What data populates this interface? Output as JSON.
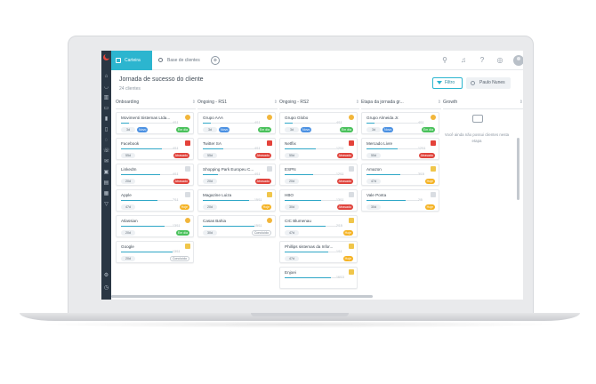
{
  "app": {
    "tabs": [
      {
        "label": "Carteira",
        "active": true
      },
      {
        "label": "Base de clientes",
        "active": false
      }
    ],
    "add_tab": "+"
  },
  "header": {
    "title": "Jornada de sucesso do cliente",
    "subtitle": "24 clientes",
    "filter_label": "Filtro",
    "user_label": "Paulo Nunes"
  },
  "colors": {
    "accent": "#2cb5cf",
    "sidebar": "#2a3744",
    "on_time": "#49c15b",
    "late": "#e0443d",
    "today": "#f5b324"
  },
  "columns": [
    {
      "title": "Onboarding",
      "cards": [
        {
          "title": "Movimenti Sistemas Ltda...",
          "date": "4/11",
          "progress": 0.15,
          "days": "3d",
          "tag": "Novo",
          "status": "Em dia",
          "status_type": "emdia",
          "mood": "face"
        },
        {
          "title": "Facebook",
          "date": "4/11",
          "progress": 0.8,
          "days": "55d",
          "tag": "",
          "status": "Atrasado",
          "status_type": "atrasado",
          "mood": "angry"
        },
        {
          "title": "LinkedIn",
          "date": "4/11",
          "progress": 0.75,
          "days": "20d",
          "tag": "",
          "status": "Atrasado",
          "status_type": "atrasado",
          "mood": "sad"
        },
        {
          "title": "Apple",
          "date": "7/11",
          "progress": 0.7,
          "days": "47d",
          "tag": "",
          "status": "Hoje",
          "status_type": "hoje",
          "mood": "sad"
        },
        {
          "title": "Atlassian",
          "date": "13/11",
          "progress": 0.85,
          "days": "20d",
          "tag": "",
          "status": "Em dia",
          "status_type": "emdia",
          "mood": "face"
        },
        {
          "title": "Google",
          "date": "13/11",
          "progress": 1.0,
          "days": "20d",
          "tag": "",
          "status": "Concluído",
          "status_type": "concluido",
          "mood": "mid"
        }
      ]
    },
    {
      "title": "Ongoing - RS1",
      "cards": [
        {
          "title": "Grupo AAA",
          "date": "4/11",
          "progress": 0.15,
          "days": "3d",
          "tag": "Novo",
          "status": "Em dia",
          "status_type": "emdia",
          "mood": "face"
        },
        {
          "title": "Twitter SA",
          "date": "4/11",
          "progress": 0.4,
          "days": "55d",
          "tag": "",
          "status": "Atrasado",
          "status_type": "atrasado",
          "mood": "angry"
        },
        {
          "title": "Shopping Park Europeu C...",
          "date": "4/11",
          "progress": 0.3,
          "days": "20d",
          "tag": "",
          "status": "Atrasado",
          "status_type": "atrasado",
          "mood": "sad"
        },
        {
          "title": "Magazine Luiza",
          "date": "15/11",
          "progress": 0.9,
          "days": "20d",
          "tag": "",
          "status": "Hoje",
          "status_type": "hoje",
          "mood": "mid"
        },
        {
          "title": "Casas Bahia",
          "date": "15/11",
          "progress": 1.0,
          "days": "30d",
          "tag": "",
          "status": "Concluído",
          "status_type": "concluido",
          "mood": "face"
        }
      ]
    },
    {
      "title": "Ongoing - RS2",
      "cards": [
        {
          "title": "Grupo Globo",
          "date": "4/11",
          "progress": 0.15,
          "days": "3d",
          "tag": "Novo",
          "status": "Em dia",
          "status_type": "emdia",
          "mood": "face"
        },
        {
          "title": "Netflix",
          "date": "12/11",
          "progress": 0.6,
          "days": "55d",
          "tag": "",
          "status": "Atrasado",
          "status_type": "atrasado",
          "mood": "angry"
        },
        {
          "title": "ESPN",
          "date": "12/11",
          "progress": 0.55,
          "days": "20d",
          "tag": "",
          "status": "Atrasado",
          "status_type": "atrasado",
          "mood": "sad"
        },
        {
          "title": "HBO",
          "date": "13/11",
          "progress": 0.7,
          "days": "30d",
          "tag": "",
          "status": "Atrasado",
          "status_type": "atrasado",
          "mood": "sad"
        },
        {
          "title": "CIC Blumenau",
          "date": "2/15",
          "progress": 0.8,
          "days": "47d",
          "tag": "",
          "status": "Hoje",
          "status_type": "hoje",
          "mood": "mid"
        },
        {
          "title": "Phillips sistemas da Infor...",
          "date": "1/11",
          "progress": 0.85,
          "days": "47d",
          "tag": "",
          "status": "Hoje",
          "status_type": "hoje",
          "mood": "mid"
        },
        {
          "title": "Enjoei",
          "date": "16/13",
          "progress": 0.9,
          "days": "",
          "tag": "",
          "status": "",
          "status_type": "",
          "mood": "mid"
        }
      ]
    },
    {
      "title": "Etapa da jornada gr...",
      "cards": [
        {
          "title": "Grupo Almeida Jr.",
          "date": "4/11",
          "progress": 0.15,
          "days": "3d",
          "tag": "Novo",
          "status": "Em dia",
          "status_type": "emdia",
          "mood": "face"
        },
        {
          "title": "Mercado Livre",
          "date": "12/11",
          "progress": 0.6,
          "days": "55d",
          "tag": "",
          "status": "Atrasado",
          "status_type": "atrasado",
          "mood": "angry"
        },
        {
          "title": "Amazon",
          "date": "3/15",
          "progress": 0.65,
          "days": "47d",
          "tag": "",
          "status": "Hoje",
          "status_type": "hoje",
          "mood": "mid"
        },
        {
          "title": "Vale Ponta",
          "date": "2/5",
          "progress": 0.75,
          "days": "30d",
          "tag": "",
          "status": "Hoje",
          "status_type": "hoje",
          "mood": "sad"
        }
      ]
    },
    {
      "title": "Growth",
      "cards": [],
      "empty_text": "Você ainda não possui clientes nesta etapa"
    }
  ]
}
